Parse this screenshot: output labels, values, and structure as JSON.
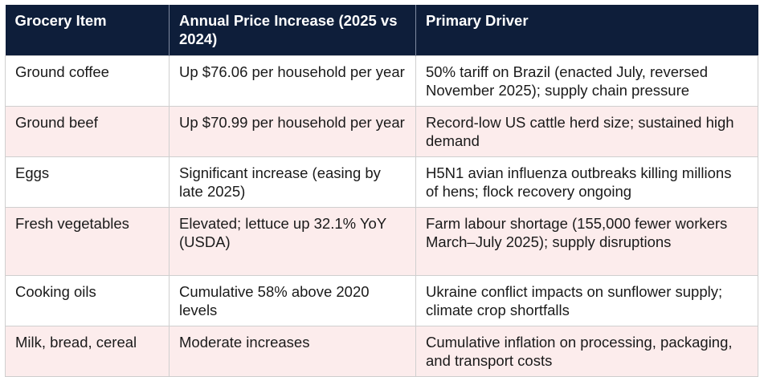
{
  "table": {
    "headers": [
      "Grocery Item",
      "Annual Price Increase (2025 vs 2024)",
      "Primary Driver"
    ],
    "rows": [
      {
        "item": "Ground coffee",
        "increase": "Up $76.06 per household per year",
        "driver": "50% tariff on Brazil (enacted July, reversed November 2025); supply chain pressure"
      },
      {
        "item": "Ground beef",
        "increase": "Up $70.99 per household per year",
        "driver": "Record-low US cattle herd size; sustained high demand"
      },
      {
        "item": "Eggs",
        "increase": "Significant increase (easing by late 2025)",
        "driver": "H5N1 avian influenza outbreaks killing millions of hens; flock recovery ongoing"
      },
      {
        "item": "Fresh vegetables",
        "increase": "Elevated; lettuce up 32.1% YoY (USDA)",
        "driver": "Farm labour shortage (155,000 fewer workers March–July 2025); supply disruptions"
      },
      {
        "item": "Cooking oils",
        "increase": "Cumulative 58% above 2020 levels",
        "driver": "Ukraine conflict impacts on sunflower supply; climate crop shortfalls"
      },
      {
        "item": "Milk, bread, cereal",
        "increase": "Moderate increases",
        "driver": "Cumulative inflation on processing, packaging, and transport costs"
      }
    ]
  },
  "colors": {
    "header_bg": "#0e1e3a",
    "header_text": "#ffffff",
    "row_alt_bg": "#fcecec",
    "row_bg": "#ffffff",
    "border": "#cfcfcf"
  }
}
